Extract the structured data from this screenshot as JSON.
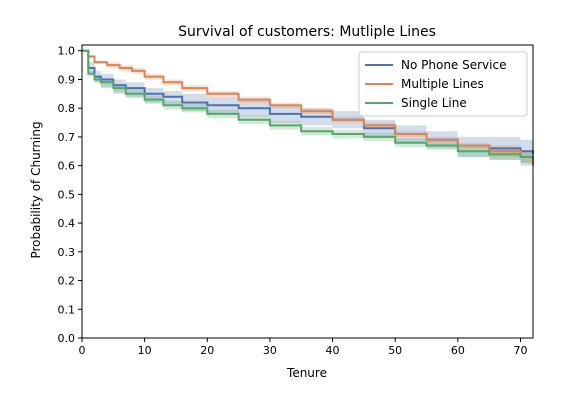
{
  "chart_data": {
    "type": "line",
    "title": "Survival of customers: Mutliple Lines",
    "xlabel": "Tenure",
    "ylabel": "Probability of Churning",
    "xlim": [
      0,
      72
    ],
    "ylim": [
      0,
      1.02
    ],
    "x_ticks": [
      "0",
      "10",
      "20",
      "30",
      "40",
      "50",
      "60",
      "70"
    ],
    "y_ticks": [
      "0.0",
      "0.1",
      "0.2",
      "0.3",
      "0.4",
      "0.5",
      "0.6",
      "0.7",
      "0.8",
      "0.9",
      "1.0"
    ],
    "grid": false,
    "legend_position": "top-right",
    "series": [
      {
        "name": "No Phone Service",
        "color": "#4c72b0",
        "x": [
          0,
          1,
          2,
          3,
          5,
          7,
          10,
          13,
          16,
          20,
          25,
          30,
          35,
          40,
          45,
          50,
          55,
          60,
          65,
          70,
          72
        ],
        "y": [
          1.0,
          0.94,
          0.91,
          0.9,
          0.88,
          0.87,
          0.85,
          0.84,
          0.82,
          0.81,
          0.8,
          0.78,
          0.77,
          0.76,
          0.73,
          0.71,
          0.69,
          0.67,
          0.66,
          0.65,
          0.64
        ],
        "ci_lower": [
          1.0,
          0.92,
          0.89,
          0.87,
          0.85,
          0.84,
          0.82,
          0.81,
          0.79,
          0.78,
          0.77,
          0.75,
          0.74,
          0.73,
          0.7,
          0.68,
          0.66,
          0.63,
          0.62,
          0.6,
          0.59
        ],
        "ci_upper": [
          1.0,
          0.96,
          0.93,
          0.92,
          0.9,
          0.89,
          0.87,
          0.86,
          0.85,
          0.84,
          0.83,
          0.81,
          0.8,
          0.79,
          0.76,
          0.74,
          0.72,
          0.7,
          0.7,
          0.69,
          0.68
        ]
      },
      {
        "name": "Multiple Lines",
        "color": "#dd8452",
        "x": [
          0,
          1,
          2,
          4,
          6,
          8,
          10,
          13,
          16,
          20,
          25,
          30,
          35,
          40,
          45,
          50,
          55,
          60,
          65,
          70,
          72
        ],
        "y": [
          1.0,
          0.98,
          0.96,
          0.95,
          0.94,
          0.93,
          0.91,
          0.89,
          0.87,
          0.85,
          0.83,
          0.81,
          0.79,
          0.76,
          0.74,
          0.71,
          0.69,
          0.67,
          0.65,
          0.63,
          0.6
        ],
        "ci_lower": [
          1.0,
          0.975,
          0.955,
          0.94,
          0.93,
          0.92,
          0.9,
          0.88,
          0.86,
          0.84,
          0.82,
          0.8,
          0.78,
          0.75,
          0.73,
          0.7,
          0.68,
          0.66,
          0.63,
          0.61,
          0.58
        ],
        "ci_upper": [
          1.0,
          0.985,
          0.965,
          0.96,
          0.95,
          0.94,
          0.92,
          0.9,
          0.88,
          0.86,
          0.84,
          0.82,
          0.8,
          0.77,
          0.75,
          0.72,
          0.7,
          0.68,
          0.67,
          0.65,
          0.62
        ]
      },
      {
        "name": "Single Line",
        "color": "#55a868",
        "x": [
          0,
          1,
          2,
          3,
          5,
          7,
          10,
          13,
          16,
          20,
          25,
          30,
          35,
          40,
          45,
          50,
          55,
          60,
          65,
          70,
          72
        ],
        "y": [
          1.0,
          0.92,
          0.9,
          0.89,
          0.87,
          0.85,
          0.83,
          0.81,
          0.8,
          0.78,
          0.76,
          0.74,
          0.72,
          0.71,
          0.7,
          0.68,
          0.67,
          0.65,
          0.64,
          0.63,
          0.62
        ],
        "ci_lower": [
          1.0,
          0.91,
          0.89,
          0.875,
          0.855,
          0.835,
          0.815,
          0.795,
          0.785,
          0.765,
          0.745,
          0.725,
          0.705,
          0.695,
          0.685,
          0.665,
          0.655,
          0.63,
          0.62,
          0.61,
          0.6
        ],
        "ci_upper": [
          1.0,
          0.93,
          0.91,
          0.905,
          0.885,
          0.865,
          0.845,
          0.825,
          0.815,
          0.795,
          0.775,
          0.755,
          0.735,
          0.725,
          0.715,
          0.695,
          0.685,
          0.67,
          0.66,
          0.65,
          0.64
        ]
      }
    ]
  }
}
